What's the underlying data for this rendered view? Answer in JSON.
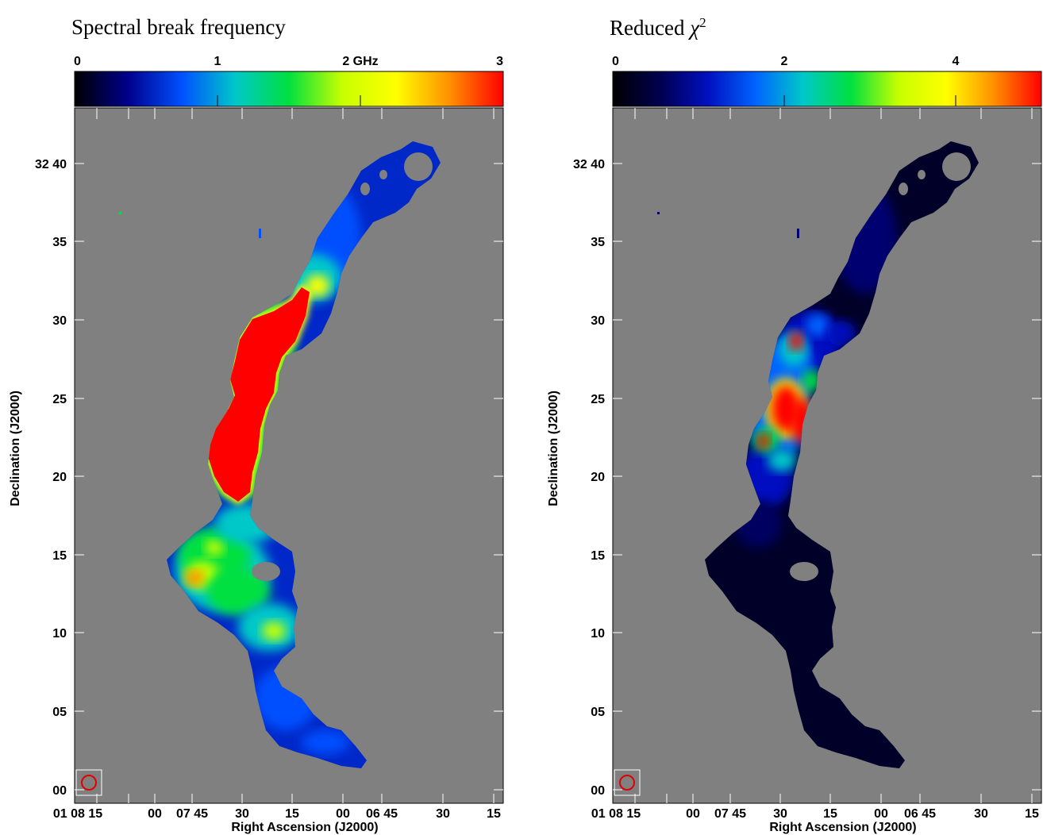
{
  "panels": [
    {
      "title": "Spectral break frequency",
      "colorbar": {
        "ticks": [
          {
            "value": 0,
            "label": "0"
          },
          {
            "value": 1,
            "label": "1"
          },
          {
            "value": 2,
            "label": "2 GHz"
          },
          {
            "value": 3,
            "label": "3"
          }
        ],
        "range": [
          0,
          3
        ],
        "colormap": [
          "#000000",
          "#00008c",
          "#0050ff",
          "#00c8c8",
          "#00e040",
          "#c8ff00",
          "#ffff00",
          "#ff9000",
          "#ff0000"
        ]
      }
    },
    {
      "title_text": "Reduced",
      "title_symbol": "χ",
      "title_exponent": "2",
      "colorbar": {
        "ticks": [
          {
            "value": 0,
            "label": "0"
          },
          {
            "value": 2,
            "label": "2"
          },
          {
            "value": 4,
            "label": "4"
          }
        ],
        "range": [
          0,
          5
        ],
        "colormap": [
          "#000000",
          "#000050",
          "#0010c0",
          "#0064ff",
          "#00c8c8",
          "#00e040",
          "#c8ff00",
          "#ffff00",
          "#ff9000",
          "#ff0000"
        ]
      }
    }
  ],
  "axes": {
    "ylabel": "Declination (J2000)",
    "xlabel": "Right Ascension (J2000)",
    "yticks": [
      "32 40",
      "35",
      "30",
      "25",
      "20",
      "15",
      "10",
      "05",
      "00"
    ],
    "xticks": [
      "01 08 15",
      "00",
      "07 45",
      "30",
      "15",
      "00",
      "06 45",
      "30",
      "15"
    ]
  },
  "colors": {
    "background_blank": "#808080",
    "beam": "#e00000",
    "hot_region": "#ff0000"
  },
  "chart_data": [
    {
      "type": "heatmap",
      "title": "Spectral break frequency",
      "quantity_unit": "GHz",
      "color_range": [
        0,
        3
      ],
      "x_axis": "Right Ascension (J2000)",
      "y_axis": "Declination (J2000)",
      "dec_range_arcmin": [
        0,
        43
      ],
      "features": [
        {
          "region": "Dec 20–30 (central ridge)",
          "value": ">=3 (saturated)"
        },
        {
          "region": "Dec 11–15 (southern lobe peak)",
          "value": "~2.5"
        },
        {
          "region": "Dec 32–33 (northern peak)",
          "value": "~2.5"
        },
        {
          "region": "Outer tails",
          "value": "~0.5–1"
        }
      ]
    },
    {
      "type": "heatmap",
      "title": "Reduced χ²",
      "color_range": [
        0,
        5
      ],
      "x_axis": "Right Ascension (J2000)",
      "y_axis": "Declination (J2000)",
      "features": [
        {
          "region": "Dec 22–29 (central ridge)",
          "value": "~4–5 peaks"
        },
        {
          "region": "Elsewhere",
          "value": "~0–0.5"
        }
      ]
    }
  ]
}
